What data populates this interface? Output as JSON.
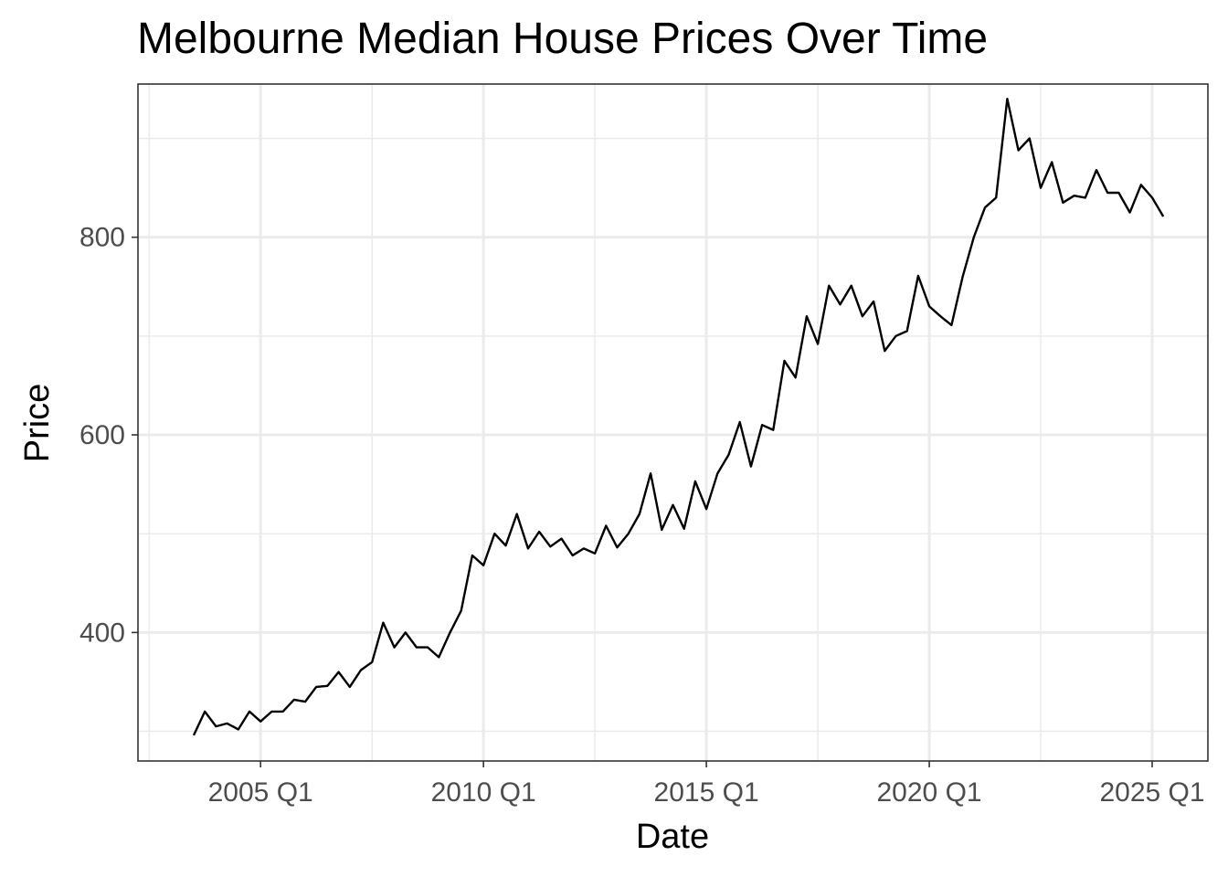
{
  "chart_data": {
    "type": "line",
    "title": "Melbourne Median House Prices Over Time",
    "xlabel": "Date",
    "ylabel": "Price",
    "x_ticks": [
      "2005 Q1",
      "2010 Q1",
      "2015 Q1",
      "2020 Q1",
      "2025 Q1"
    ],
    "y_ticks": [
      400,
      600,
      800
    ],
    "xlim": [
      "2002 Q2",
      "2026 Q2"
    ],
    "ylim": [
      270,
      955
    ],
    "grid": true,
    "legend": "none",
    "line_color": "#000000",
    "series": [
      {
        "x": [
          "2003 Q3",
          "2003 Q4",
          "2004 Q1",
          "2004 Q2",
          "2004 Q3",
          "2004 Q4",
          "2005 Q1",
          "2005 Q2",
          "2005 Q3",
          "2005 Q4",
          "2006 Q1",
          "2006 Q2",
          "2006 Q3",
          "2006 Q4",
          "2007 Q1",
          "2007 Q2",
          "2007 Q3",
          "2007 Q4",
          "2008 Q1",
          "2008 Q2",
          "2008 Q3",
          "2008 Q4",
          "2009 Q1",
          "2009 Q2",
          "2009 Q3",
          "2009 Q4",
          "2010 Q1",
          "2010 Q2",
          "2010 Q3",
          "2010 Q4",
          "2011 Q1",
          "2011 Q2",
          "2011 Q3",
          "2011 Q4",
          "2012 Q1",
          "2012 Q2",
          "2012 Q3",
          "2012 Q4",
          "2013 Q1",
          "2013 Q2",
          "2013 Q3",
          "2013 Q4",
          "2014 Q1",
          "2014 Q2",
          "2014 Q3",
          "2014 Q4",
          "2015 Q1",
          "2015 Q2",
          "2015 Q3",
          "2015 Q4",
          "2016 Q1",
          "2016 Q2",
          "2016 Q3",
          "2016 Q4",
          "2017 Q1",
          "2017 Q2",
          "2017 Q3",
          "2017 Q4",
          "2018 Q1",
          "2018 Q2",
          "2018 Q3",
          "2018 Q4",
          "2019 Q1",
          "2019 Q2",
          "2019 Q3",
          "2019 Q4",
          "2020 Q1",
          "2020 Q2",
          "2020 Q3",
          "2020 Q4",
          "2021 Q1",
          "2021 Q2",
          "2021 Q3",
          "2021 Q4",
          "2022 Q1",
          "2022 Q2",
          "2022 Q3",
          "2022 Q4",
          "2023 Q1",
          "2023 Q2",
          "2023 Q3",
          "2023 Q4",
          "2024 Q1",
          "2024 Q2",
          "2024 Q3",
          "2024 Q4",
          "2025 Q1",
          "2025 Q2"
        ],
        "y": [
          296,
          320,
          305,
          308,
          302,
          320,
          310,
          320,
          320,
          332,
          330,
          345,
          346,
          360,
          345,
          362,
          370,
          410,
          385,
          400,
          385,
          385,
          375,
          400,
          422,
          478,
          468,
          500,
          488,
          520,
          485,
          502,
          487,
          495,
          478,
          485,
          480,
          508,
          486,
          500,
          520,
          561,
          504,
          529,
          505,
          553,
          525,
          561,
          580,
          613,
          568,
          610,
          605,
          675,
          658,
          720,
          692,
          751,
          732,
          751,
          720,
          735,
          685,
          700,
          705,
          761,
          730,
          720,
          711,
          760,
          800,
          830,
          840,
          940,
          888,
          900,
          850,
          876,
          835,
          842,
          840,
          868,
          845,
          845,
          825,
          853,
          840,
          821
        ]
      }
    ]
  }
}
